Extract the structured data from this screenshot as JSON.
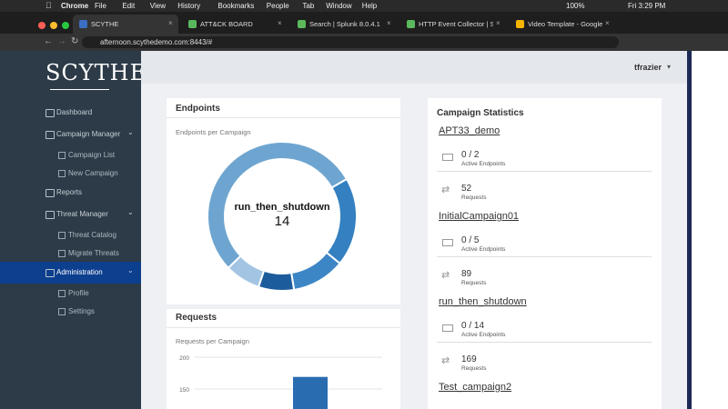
{
  "menu_bar": {
    "app": "Chrome",
    "items": [
      "File",
      "Edit",
      "View",
      "History",
      "Bookmarks",
      "People",
      "Tab",
      "Window",
      "Help"
    ],
    "battery": "100%",
    "clock": "Fri 3:29 PM"
  },
  "tabs": [
    {
      "label": "SCYTHE",
      "active": true
    },
    {
      "label": "ATT&CK BOARD"
    },
    {
      "label": "Search | Splunk 8.0.4.1"
    },
    {
      "label": "HTTP Event Collector | Splunk"
    },
    {
      "label": "Video Template - Google Slides"
    }
  ],
  "url": "afternoon.scythedemo.com:8443/#",
  "sidebar": {
    "logo": "SCYTHE",
    "items": [
      {
        "label": "Dashboard"
      },
      {
        "label": "Campaign Manager",
        "children": [
          "Campaign List",
          "New Campaign"
        ]
      },
      {
        "label": "Reports"
      },
      {
        "label": "Threat Manager",
        "children": [
          "Threat Catalog",
          "Migrate Threats"
        ]
      },
      {
        "label": "Administration",
        "active": true,
        "children": [
          "Profile",
          "Settings"
        ]
      }
    ]
  },
  "user": "tfrazier",
  "endpoints": {
    "title": "Endpoints",
    "subtitle": "Endpoints per Campaign",
    "center_label": "run_then_shutdown",
    "center_value": 14,
    "values": [
      14,
      5,
      3,
      2,
      2
    ],
    "colors": [
      "#6ea5d0",
      "#3480c0",
      "#3d86c6",
      "#1d5c9c",
      "#a3c5e3"
    ]
  },
  "requests": {
    "title": "Requests",
    "subtitle": "Requests per Campaign",
    "yticks": [
      200,
      150
    ],
    "values": [
      169
    ],
    "color": "#2a6cb0"
  },
  "campaign_statistics": {
    "title": "Campaign Statistics",
    "campaigns": [
      {
        "name": "APT33_demo",
        "endpoints": "0 / 2",
        "endpoints_label": "Active Endpoints",
        "requests": 52,
        "requests_label": "Requests"
      },
      {
        "name": "InitialCampaign01",
        "endpoints": "0 / 5",
        "endpoints_label": "Active Endpoints",
        "requests": 89,
        "requests_label": "Requests"
      },
      {
        "name": "run_then_shutdown",
        "endpoints": "0 / 14",
        "endpoints_label": "Active Endpoints",
        "requests": 169,
        "requests_label": "Requests"
      },
      {
        "name": "Test_campaign2"
      }
    ]
  }
}
